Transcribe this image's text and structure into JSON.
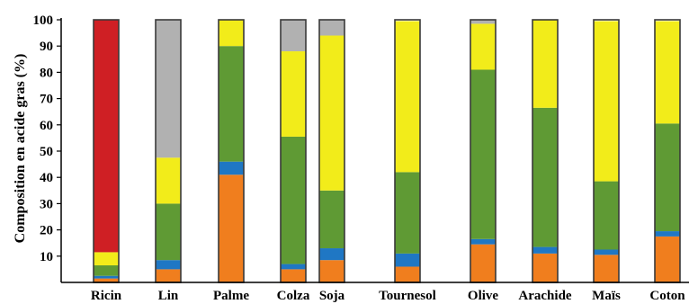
{
  "chart_data": {
    "type": "bar",
    "stacked": true,
    "ylabel": "Composition en acide gras (%)",
    "xlabel": "",
    "title": "",
    "ylim": [
      0,
      100
    ],
    "yticks": [
      10,
      20,
      30,
      40,
      50,
      60,
      70,
      80,
      90,
      100
    ],
    "grid": false,
    "legend": "none",
    "categories": [
      "Ricin",
      "Lin",
      "Palme",
      "Colza",
      "Soja",
      "Tournesol",
      "Olive",
      "Arachide",
      "Maïs",
      "Coton"
    ],
    "series": [
      {
        "color": "#f07e1e",
        "values": [
          1.5,
          5,
          41,
          5,
          8.5,
          6,
          14.5,
          11,
          10.5,
          17.5
        ]
      },
      {
        "color": "#1f77c4",
        "values": [
          1,
          3.5,
          5,
          2,
          4.5,
          5,
          2,
          2.5,
          2,
          2
        ]
      },
      {
        "color": "#5f9a34",
        "values": [
          4,
          21.5,
          44,
          48.5,
          22,
          31,
          64.5,
          53,
          26,
          41
        ]
      },
      {
        "color": "#f2ec1a",
        "values": [
          5,
          17.5,
          10,
          32.5,
          59,
          57.5,
          17.5,
          33.5,
          61,
          39
        ]
      },
      {
        "color": "#b1b1b1",
        "values": [
          0,
          52.5,
          0,
          12,
          6,
          0,
          1.5,
          0,
          0,
          0
        ]
      },
      {
        "color": "#cf1f24",
        "values": [
          88.5,
          0,
          0,
          0,
          0,
          0,
          0,
          0,
          0,
          0
        ]
      }
    ]
  }
}
